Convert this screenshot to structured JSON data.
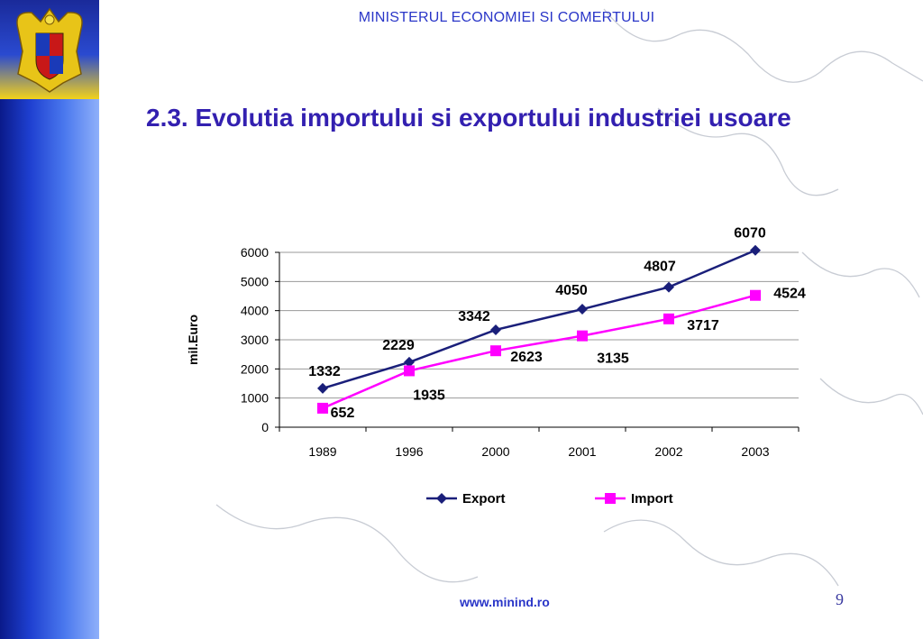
{
  "header": {
    "ministry": "MINISTERUL ECONOMIEI SI COMERTULUI"
  },
  "slide": {
    "title": "2.3. Evolutia importului si exportului industriei usoare",
    "page_number": "9"
  },
  "footer": {
    "url": "www.minind.ro"
  },
  "colors": {
    "export": "#1a1f7a",
    "import": "#ff00ff",
    "title": "#3320b0",
    "header": "#2a36c8",
    "sidebar": "#2a4ad0",
    "grid": "#9a9a9a"
  },
  "icons": {
    "crest": "romania-coat-of-arms-icon",
    "background": "europe-map-outline"
  },
  "chart_data": {
    "type": "line",
    "categories": [
      "1989",
      "1996",
      "2000",
      "2001",
      "2002",
      "2003"
    ],
    "ylabel": "mil.Euro",
    "ylim": [
      0,
      6000
    ],
    "yticks": [
      0,
      1000,
      2000,
      3000,
      4000,
      5000,
      6000
    ],
    "grid": true,
    "legend_position": "bottom",
    "series": [
      {
        "name": "Export",
        "values": [
          1332,
          2229,
          3342,
          4050,
          4807,
          6070
        ],
        "marker": "diamond",
        "color": "#1a1f7a"
      },
      {
        "name": "Import",
        "values": [
          652,
          1935,
          2623,
          3135,
          3717,
          4524
        ],
        "marker": "square",
        "color": "#ff00ff"
      }
    ]
  }
}
